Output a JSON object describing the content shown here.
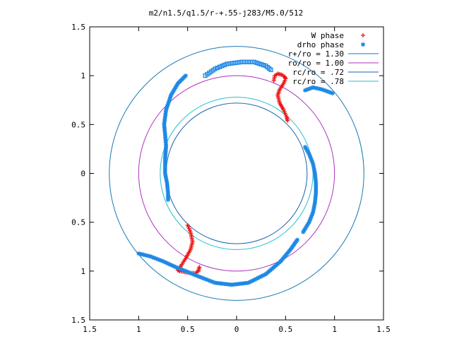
{
  "chart_data": {
    "type": "scatter",
    "title": "m2/n1.5/q1.5/r-+.55-j283/M5.0/512",
    "xlabel": "",
    "ylabel": "",
    "xlim": [
      -1.5,
      1.5
    ],
    "ylim": [
      -1.5,
      1.5
    ],
    "x_ticks": [
      -1.5,
      -1,
      -0.5,
      0,
      0.5,
      1,
      1.5
    ],
    "x_tick_labels": [
      "1.5",
      "1",
      "0.5",
      "0",
      "0.5",
      "1",
      "1.5"
    ],
    "y_ticks": [
      -1.5,
      -1,
      -0.5,
      0,
      0.5,
      1,
      1.5
    ],
    "y_tick_labels": [
      "1.5",
      "1",
      "0.5",
      "0",
      "0.5",
      "1",
      "1.5"
    ],
    "grid": false,
    "legend_position": "top-right",
    "circles": [
      {
        "label": "r+/ro = 1.30",
        "radius": 1.3,
        "color": "#1a78b4"
      },
      {
        "label": "ro/ro = 1.00",
        "radius": 1.0,
        "color": "#b030c0"
      },
      {
        "label": "rc/ro =  .72",
        "radius": 0.72,
        "color": "#1a60b0"
      },
      {
        "label": "rc/ro =  .78",
        "radius": 0.78,
        "color": "#20c0d0"
      }
    ],
    "series": [
      {
        "name": "W phase",
        "marker": "+",
        "color": "#ee1111",
        "segments": [
          [
            [
              0.38,
              0.95
            ],
            [
              0.39,
              1.0
            ],
            [
              0.42,
              1.02
            ],
            [
              0.46,
              1.01
            ],
            [
              0.49,
              0.99
            ],
            [
              0.5,
              0.97
            ],
            [
              0.48,
              0.92
            ],
            [
              0.44,
              0.86
            ],
            [
              0.42,
              0.8
            ],
            [
              0.44,
              0.72
            ],
            [
              0.48,
              0.65
            ],
            [
              0.51,
              0.58
            ],
            [
              0.52,
              0.54
            ]
          ],
          [
            [
              -0.38,
              -0.96
            ],
            [
              -0.39,
              -1.0
            ],
            [
              -0.42,
              -1.02
            ],
            [
              -0.47,
              -1.02
            ],
            [
              -0.53,
              -1.01
            ],
            [
              -0.58,
              -1.0
            ],
            [
              -0.6,
              -0.99
            ],
            [
              -0.57,
              -0.95
            ],
            [
              -0.52,
              -0.87
            ],
            [
              -0.47,
              -0.78
            ],
            [
              -0.45,
              -0.7
            ],
            [
              -0.47,
              -0.6
            ],
            [
              -0.5,
              -0.53
            ]
          ]
        ]
      },
      {
        "name": "drho phase",
        "marker": "*",
        "color": "#1e88e5",
        "segments": [
          [
            [
              -0.52,
              1.0
            ],
            [
              -0.6,
              0.92
            ],
            [
              -0.67,
              0.8
            ],
            [
              -0.72,
              0.65
            ],
            [
              -0.74,
              0.5
            ],
            [
              -0.73,
              0.4
            ],
            [
              -0.72,
              0.28
            ],
            [
              -0.73,
              0.15
            ],
            [
              -0.73,
              0.0
            ],
            [
              -0.71,
              -0.1
            ],
            [
              -0.7,
              -0.2
            ],
            [
              -0.7,
              -0.27
            ]
          ],
          [
            [
              0.7,
              0.27
            ],
            [
              0.74,
              0.2
            ],
            [
              0.78,
              0.1
            ],
            [
              0.8,
              0.0
            ],
            [
              0.81,
              -0.1
            ],
            [
              0.81,
              -0.2
            ],
            [
              0.8,
              -0.3
            ],
            [
              0.78,
              -0.4
            ],
            [
              0.74,
              -0.5
            ],
            [
              0.68,
              -0.6
            ]
          ],
          [
            [
              0.62,
              -0.68
            ],
            [
              0.55,
              -0.78
            ],
            [
              0.45,
              -0.9
            ],
            [
              0.3,
              -1.03
            ],
            [
              0.12,
              -1.12
            ],
            [
              -0.05,
              -1.14
            ],
            [
              -0.22,
              -1.12
            ],
            [
              -0.4,
              -1.05
            ],
            [
              -0.52,
              -1.0
            ],
            [
              -0.62,
              -0.96
            ],
            [
              -0.75,
              -0.9
            ],
            [
              -0.88,
              -0.85
            ],
            [
              -1.0,
              -0.82
            ]
          ],
          [
            [
              0.7,
              0.85
            ],
            [
              0.78,
              0.88
            ],
            [
              0.87,
              0.86
            ],
            [
              0.98,
              0.82
            ]
          ]
        ]
      },
      {
        "name": "",
        "marker": "square",
        "color": "#1e88e5",
        "segments": [
          [
            [
              -0.32,
              1.0
            ],
            [
              -0.22,
              1.07
            ],
            [
              -0.1,
              1.12
            ],
            [
              0.05,
              1.14
            ],
            [
              0.18,
              1.14
            ],
            [
              0.3,
              1.1
            ],
            [
              0.35,
              1.06
            ]
          ]
        ]
      }
    ]
  }
}
